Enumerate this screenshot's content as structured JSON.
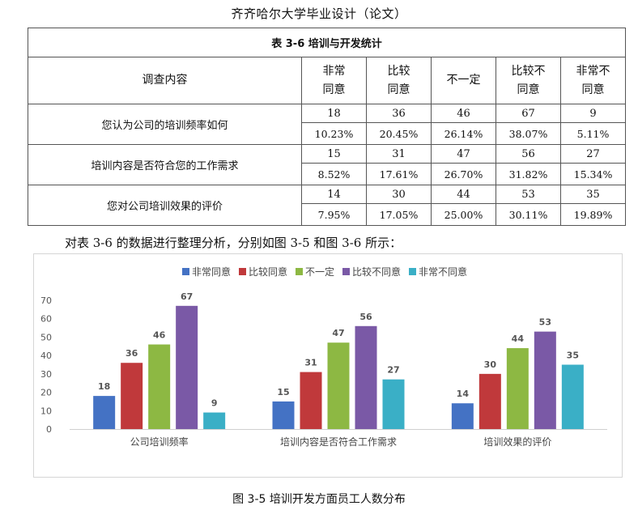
{
  "document": {
    "header_title": "齐齐哈尔大学毕业设计（论文）",
    "analysis_text": "对表 3-6 的数据进行整理分析，分别如图 3-5 和图 3-6 所示：",
    "figure_caption": "图 3-5 培训开发方面员工人数分布"
  },
  "table": {
    "caption": "表 3-6 培训与开发统计",
    "label_header": "调查内容",
    "columns": [
      {
        "line1": "非常",
        "line2": "同意"
      },
      {
        "line1": "比较",
        "line2": "同意"
      },
      {
        "line1": "不一定",
        "line2": ""
      },
      {
        "line1": "比较不",
        "line2": "同意"
      },
      {
        "line1": "非常不",
        "line2": "同意"
      }
    ],
    "rows": [
      {
        "label": "您认为公司的培训频率如何",
        "counts": [
          "18",
          "36",
          "46",
          "67",
          "9"
        ],
        "percents": [
          "10.23%",
          "20.45%",
          "26.14%",
          "38.07%",
          "5.11%"
        ]
      },
      {
        "label": "培训内容是否符合您的工作需求",
        "counts": [
          "15",
          "31",
          "47",
          "56",
          "27"
        ],
        "percents": [
          "8.52%",
          "17.61%",
          "26.70%",
          "31.82%",
          "15.34%"
        ]
      },
      {
        "label": "您对公司培训效果的评价",
        "counts": [
          "14",
          "30",
          "44",
          "53",
          "35"
        ],
        "percents": [
          "7.95%",
          "17.05%",
          "25.00%",
          "30.11%",
          "19.89%"
        ]
      }
    ]
  },
  "chart_data": {
    "type": "bar",
    "title": "",
    "xlabel": "",
    "ylabel": "",
    "categories": [
      "公司培训频率",
      "培训内容是否符合工作需求",
      "培训效果的评价"
    ],
    "series": [
      {
        "name": "非常同意",
        "color": "#4472C4",
        "values": [
          18,
          15,
          14
        ]
      },
      {
        "name": "比较同意",
        "color": "#C0393B",
        "values": [
          36,
          31,
          30
        ]
      },
      {
        "name": "不一定",
        "color": "#8DB843",
        "values": [
          46,
          47,
          44
        ]
      },
      {
        "name": "比较不同意",
        "color": "#7A59A6",
        "values": [
          67,
          56,
          53
        ]
      },
      {
        "name": "非常不同意",
        "color": "#3AAFC6",
        "values": [
          9,
          27,
          35
        ]
      }
    ],
    "ylim": [
      0,
      70
    ],
    "yticks": [
      0,
      10,
      20,
      30,
      40,
      50,
      60,
      70
    ],
    "grid": false,
    "legend": "top"
  }
}
